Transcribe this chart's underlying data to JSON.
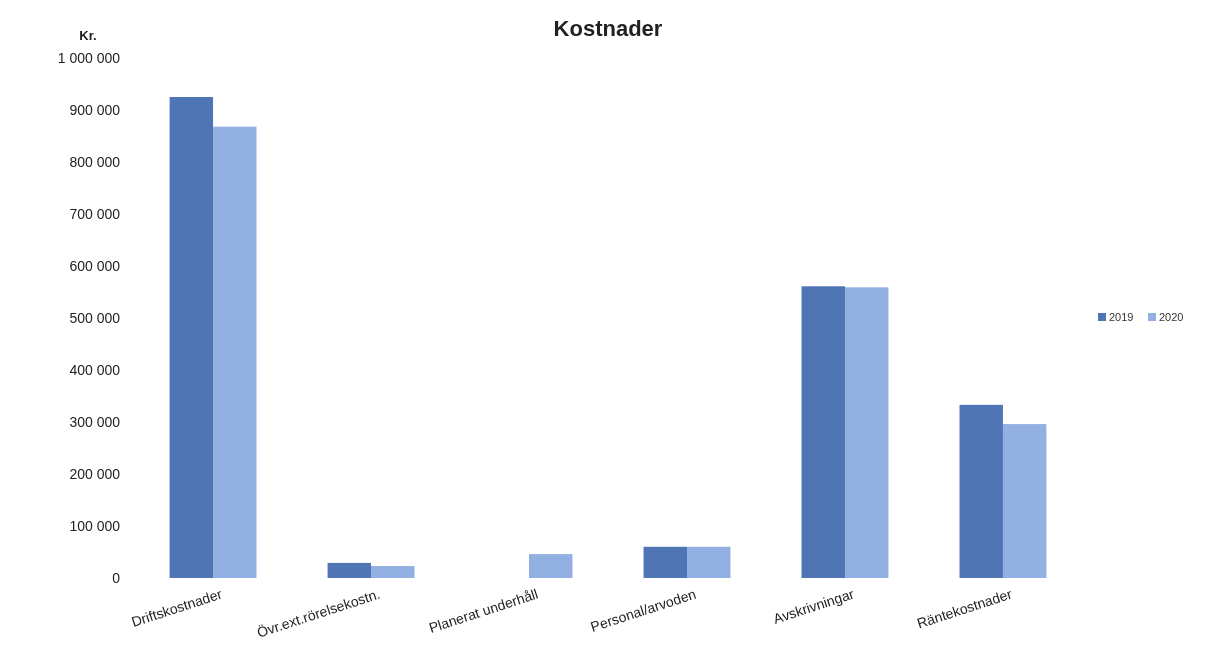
{
  "chart_data": {
    "type": "bar",
    "title": "Kostnader",
    "ylabel": "Kr.",
    "categories": [
      "Driftskostnader",
      "Övr.ext.rörelsekostn.",
      "Planerat underhåll",
      "Personal/arvoden",
      "Avskrivningar",
      "Räntekostnader"
    ],
    "series": [
      {
        "name": "2019",
        "color": "#4f75b5",
        "values": [
          925000,
          29000,
          0,
          60000,
          561000,
          333000
        ]
      },
      {
        "name": "2020",
        "color": "#92b1e2",
        "values": [
          868000,
          23000,
          46000,
          60000,
          559000,
          296000
        ]
      }
    ],
    "ylim": [
      0,
      1000000
    ],
    "yticks": [
      {
        "value": 0,
        "label": "0"
      },
      {
        "value": 100000,
        "label": "100 000"
      },
      {
        "value": 200000,
        "label": "200 000"
      },
      {
        "value": 300000,
        "label": "300 000"
      },
      {
        "value": 400000,
        "label": "400 000"
      },
      {
        "value": 500000,
        "label": "500 000"
      },
      {
        "value": 600000,
        "label": "600 000"
      },
      {
        "value": 700000,
        "label": "700 000"
      },
      {
        "value": 800000,
        "label": "800 000"
      },
      {
        "value": 900000,
        "label": "900 000"
      },
      {
        "value": 1000000,
        "label": "1 000 000"
      }
    ],
    "grid": false,
    "legend": "right"
  }
}
